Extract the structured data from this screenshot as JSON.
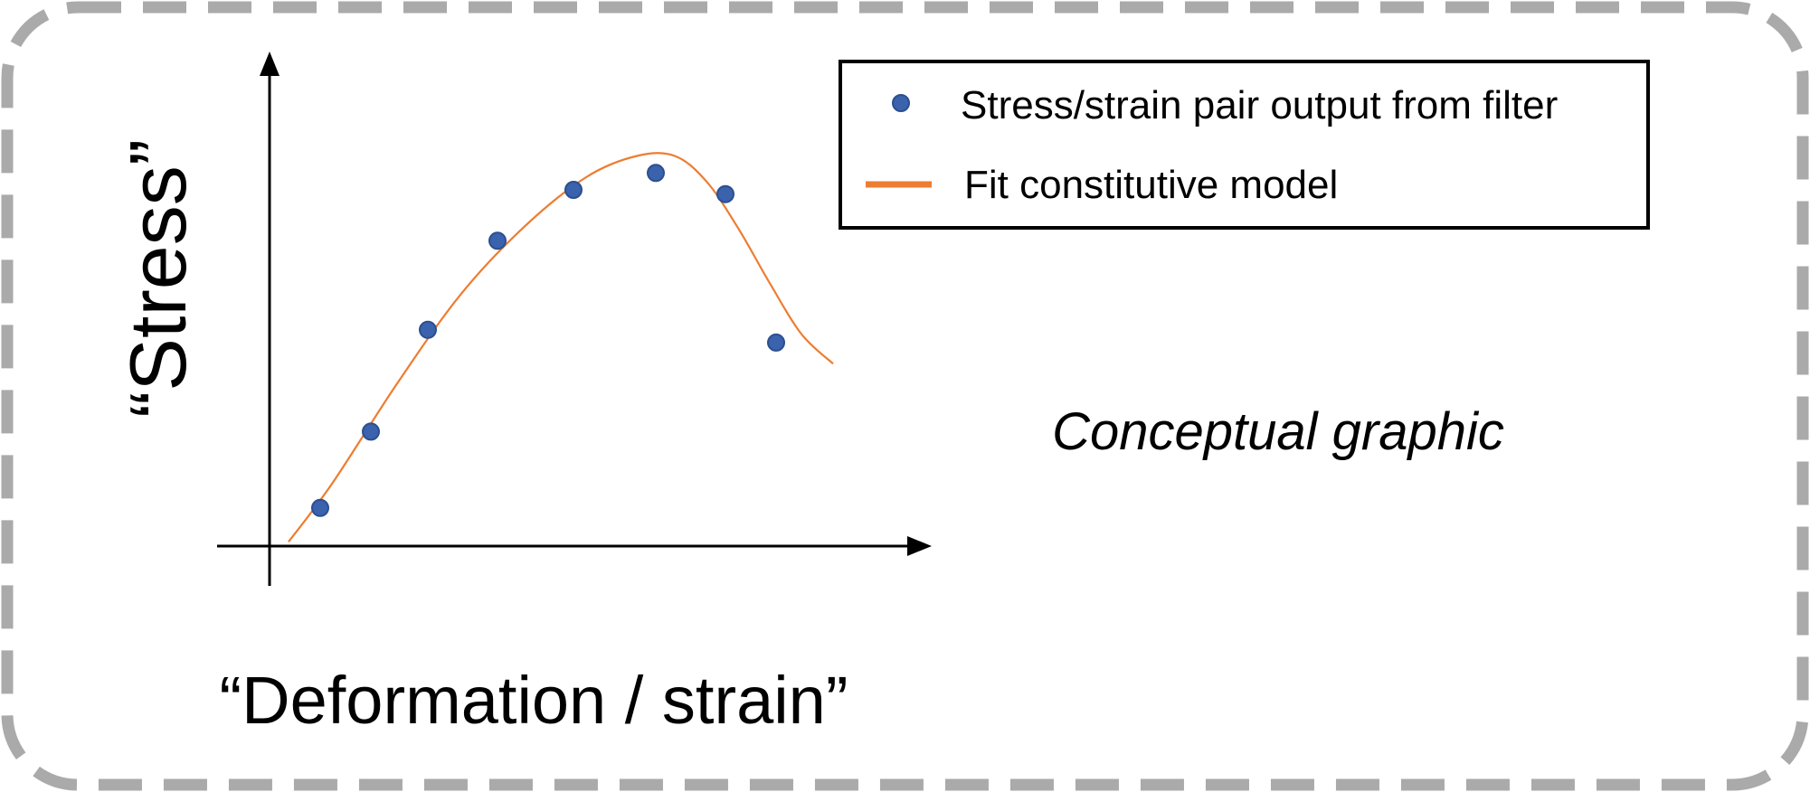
{
  "chart_data": {
    "type": "scatter",
    "xlabel": "“Deformation / strain”",
    "ylabel": "“Stress”",
    "annotation": "Conceptual graphic",
    "legend": {
      "placement": "top-right",
      "entries": [
        {
          "label": "Stress/strain pair output from filter",
          "marker": "point"
        },
        {
          "label": "Fit constitutive model",
          "marker": "line"
        }
      ]
    },
    "grid": false,
    "xlim": [
      0,
      10
    ],
    "ylim": [
      0,
      10
    ],
    "series": [
      {
        "kind": "points",
        "color": "#3a62ad",
        "x": [
          0.8,
          1.6,
          2.5,
          3.6,
          4.8,
          6.1,
          7.2,
          8.0
        ],
        "y": [
          0.9,
          2.7,
          5.1,
          7.2,
          8.4,
          8.8,
          8.3,
          4.8
        ]
      },
      {
        "kind": "line",
        "color": "#ed7d31",
        "x": [
          0.3,
          1.0,
          2.0,
          3.0,
          4.0,
          5.0,
          5.8,
          6.4,
          6.9,
          7.4,
          7.9,
          8.4,
          8.9
        ],
        "y": [
          0.1,
          1.5,
          3.8,
          5.9,
          7.5,
          8.7,
          9.2,
          9.2,
          8.6,
          7.5,
          6.2,
          5.0,
          4.3
        ]
      }
    ]
  },
  "colors": {
    "frame": "#aaaaaa",
    "axis": "#000000",
    "legend_border": "#000000"
  }
}
